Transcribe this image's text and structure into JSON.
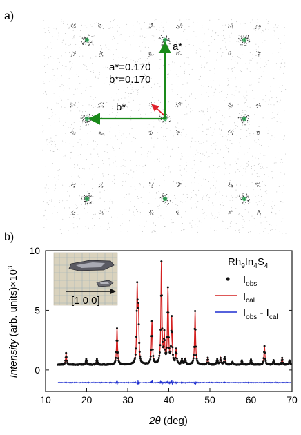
{
  "panel_a": {
    "label": "a)",
    "a_star_label": "a*",
    "b_star_label": "b*",
    "a_value_text": "a*=0.170",
    "b_value_text": "b*=0.170",
    "colors": {
      "arrow": "#1a8a1a",
      "spot_core": "#2db35a",
      "small_arrow": "#e0202a",
      "dots": "#555555"
    }
  },
  "panel_b": {
    "label": "b)",
    "inset_direction_label": "[1 0 0]",
    "formula_parts": [
      "Rh",
      "9",
      "In",
      "4",
      "S",
      "4"
    ],
    "legend": {
      "obs": {
        "main": "I",
        "sub": "obs"
      },
      "cal": {
        "main": "I",
        "sub": "cal"
      },
      "diff": {
        "main1": "I",
        "sub1": "obs",
        "sep": " - ",
        "main2": "I",
        "sub2": "cal"
      }
    }
  },
  "chart_data": {
    "type": "line",
    "xlabel_italic": "2θ",
    "xlabel_rest": " (deg)",
    "ylabel_italic": "Intensity",
    "ylabel_rest": " (arb. units)×10",
    "ylabel_sup": "3",
    "xlim": [
      10,
      70
    ],
    "ylim": [
      -1.8,
      10
    ],
    "xticks": [
      10,
      20,
      30,
      40,
      50,
      60,
      70
    ],
    "yticks": [
      0,
      5,
      10
    ],
    "background": 0.45,
    "diff_offset": -1.05,
    "series_colors": {
      "obs": "#111111",
      "cal": "#d42020",
      "diff": "#1f2fd0"
    },
    "peaks": [
      {
        "x": 15.0,
        "y": 1.4
      },
      {
        "x": 19.9,
        "y": 0.9
      },
      {
        "x": 22.5,
        "y": 0.9
      },
      {
        "x": 27.4,
        "y": 3.5
      },
      {
        "x": 32.3,
        "y": 6.6
      },
      {
        "x": 32.6,
        "y": 4.5
      },
      {
        "x": 35.9,
        "y": 4.0
      },
      {
        "x": 38.2,
        "y": 8.9
      },
      {
        "x": 38.9,
        "y": 2.8
      },
      {
        "x": 39.8,
        "y": 6.7
      },
      {
        "x": 40.7,
        "y": 4.3
      },
      {
        "x": 41.8,
        "y": 1.7
      },
      {
        "x": 43.2,
        "y": 0.9
      },
      {
        "x": 44.0,
        "y": 0.9
      },
      {
        "x": 46.4,
        "y": 4.9
      },
      {
        "x": 49.5,
        "y": 1.0
      },
      {
        "x": 51.8,
        "y": 0.9
      },
      {
        "x": 52.6,
        "y": 1.0
      },
      {
        "x": 53.6,
        "y": 1.1
      },
      {
        "x": 55.5,
        "y": 0.7
      },
      {
        "x": 57.8,
        "y": 0.8
      },
      {
        "x": 60.0,
        "y": 0.9
      },
      {
        "x": 63.3,
        "y": 2.0
      },
      {
        "x": 65.5,
        "y": 0.8
      },
      {
        "x": 67.6,
        "y": 1.0
      },
      {
        "x": 69.4,
        "y": 0.8
      }
    ]
  }
}
